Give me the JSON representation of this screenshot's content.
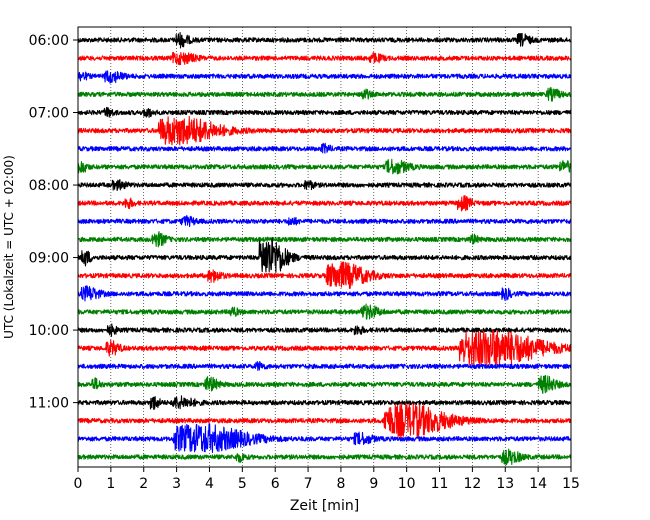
{
  "chart_data": {
    "type": "line",
    "xlabel": "Zeit  [min]",
    "ylabel": "UTC (Lokalzeit = UTC + 02:00)",
    "xlim": [
      0,
      15
    ],
    "x_ticks": [
      "0",
      "1",
      "2",
      "3",
      "4",
      "5",
      "6",
      "7",
      "8",
      "9",
      "10",
      "11",
      "12",
      "13",
      "14",
      "15"
    ],
    "y_ticks": [
      "06:00",
      "07:00",
      "08:00",
      "09:00",
      "10:00",
      "11:00"
    ],
    "grid": "vertical dotted at each minute",
    "trace_interval_min": 15,
    "trace_colors": [
      "#000000",
      "#ff0000",
      "#0000ff",
      "#008000"
    ],
    "traces": [
      {
        "start": "06:00",
        "color": "#000000",
        "events": [
          {
            "t": 3.1,
            "amp": 0.5,
            "dur": 0.3
          },
          {
            "t": 13.5,
            "amp": 0.4,
            "dur": 0.3
          }
        ]
      },
      {
        "start": "06:15",
        "color": "#ff0000",
        "events": [
          {
            "t": 3.1,
            "amp": 0.4,
            "dur": 0.5
          },
          {
            "t": 9.0,
            "amp": 0.3,
            "dur": 0.3
          }
        ]
      },
      {
        "start": "06:30",
        "color": "#0000ff",
        "events": [
          {
            "t": 1.0,
            "amp": 0.4,
            "dur": 0.4
          },
          {
            "t": 0.1,
            "amp": 0.3,
            "dur": 0.2
          }
        ]
      },
      {
        "start": "06:45",
        "color": "#008000",
        "events": [
          {
            "t": 8.7,
            "amp": 0.35,
            "dur": 0.2
          },
          {
            "t": 14.4,
            "amp": 0.4,
            "dur": 0.3
          }
        ]
      },
      {
        "start": "07:00",
        "color": "#000000",
        "events": [
          {
            "t": 0.9,
            "amp": 0.3,
            "dur": 0.2
          },
          {
            "t": 2.1,
            "amp": 0.3,
            "dur": 0.2
          }
        ]
      },
      {
        "start": "07:15",
        "color": "#ff0000",
        "events": [
          {
            "t": 3.1,
            "amp": 1.1,
            "dur": 1.3
          }
        ]
      },
      {
        "start": "07:30",
        "color": "#0000ff",
        "events": [
          {
            "t": 7.5,
            "amp": 0.3,
            "dur": 0.2
          }
        ]
      },
      {
        "start": "07:45",
        "color": "#008000",
        "events": [
          {
            "t": 9.6,
            "amp": 0.5,
            "dur": 0.5
          },
          {
            "t": 14.8,
            "amp": 0.4,
            "dur": 0.3
          },
          {
            "t": 0.1,
            "amp": 0.4,
            "dur": 0.2
          }
        ]
      },
      {
        "start": "08:00",
        "color": "#000000",
        "events": [
          {
            "t": 1.2,
            "amp": 0.3,
            "dur": 0.3
          },
          {
            "t": 7.0,
            "amp": 0.3,
            "dur": 0.2
          }
        ]
      },
      {
        "start": "08:15",
        "color": "#ff0000",
        "events": [
          {
            "t": 1.5,
            "amp": 0.35,
            "dur": 0.2
          },
          {
            "t": 11.7,
            "amp": 0.5,
            "dur": 0.3
          }
        ]
      },
      {
        "start": "08:30",
        "color": "#0000ff",
        "events": [
          {
            "t": 3.3,
            "amp": 0.3,
            "dur": 0.3
          },
          {
            "t": 6.5,
            "amp": 0.25,
            "dur": 0.2
          }
        ]
      },
      {
        "start": "08:45",
        "color": "#008000",
        "events": [
          {
            "t": 2.4,
            "amp": 0.5,
            "dur": 0.3
          },
          {
            "t": 12.0,
            "amp": 0.3,
            "dur": 0.2
          }
        ]
      },
      {
        "start": "09:00",
        "color": "#000000",
        "events": [
          {
            "t": 5.8,
            "amp": 1.6,
            "dur": 0.6
          },
          {
            "t": 0.2,
            "amp": 0.6,
            "dur": 0.2
          }
        ]
      },
      {
        "start": "09:15",
        "color": "#ff0000",
        "events": [
          {
            "t": 8.0,
            "amp": 1.0,
            "dur": 0.9
          },
          {
            "t": 4.1,
            "amp": 0.4,
            "dur": 0.3
          }
        ]
      },
      {
        "start": "09:30",
        "color": "#0000ff",
        "events": [
          {
            "t": 0.3,
            "amp": 0.5,
            "dur": 0.4
          },
          {
            "t": 13.0,
            "amp": 0.4,
            "dur": 0.2
          }
        ]
      },
      {
        "start": "09:45",
        "color": "#008000",
        "events": [
          {
            "t": 8.8,
            "amp": 0.5,
            "dur": 0.4
          },
          {
            "t": 4.7,
            "amp": 0.3,
            "dur": 0.2
          }
        ]
      },
      {
        "start": "10:00",
        "color": "#000000",
        "events": [
          {
            "t": 1.0,
            "amp": 0.35,
            "dur": 0.2
          },
          {
            "t": 8.5,
            "amp": 0.3,
            "dur": 0.2
          }
        ]
      },
      {
        "start": "10:15",
        "color": "#ff0000",
        "events": [
          {
            "t": 12.5,
            "amp": 1.5,
            "dur": 1.8
          },
          {
            "t": 1.0,
            "amp": 0.5,
            "dur": 0.3
          }
        ]
      },
      {
        "start": "10:30",
        "color": "#0000ff",
        "events": [
          {
            "t": 5.5,
            "amp": 0.25,
            "dur": 0.2
          }
        ]
      },
      {
        "start": "10:45",
        "color": "#008000",
        "events": [
          {
            "t": 4.0,
            "amp": 0.5,
            "dur": 0.3
          },
          {
            "t": 14.2,
            "amp": 0.6,
            "dur": 0.4
          },
          {
            "t": 0.5,
            "amp": 0.4,
            "dur": 0.2
          }
        ]
      },
      {
        "start": "11:00",
        "color": "#000000",
        "events": [
          {
            "t": 3.1,
            "amp": 0.4,
            "dur": 0.5
          },
          {
            "t": 2.3,
            "amp": 0.5,
            "dur": 0.2
          }
        ]
      },
      {
        "start": "11:15",
        "color": "#ff0000",
        "events": [
          {
            "t": 10.0,
            "amp": 1.3,
            "dur": 1.4
          }
        ]
      },
      {
        "start": "11:30",
        "color": "#0000ff",
        "events": [
          {
            "t": 3.7,
            "amp": 1.1,
            "dur": 1.6
          },
          {
            "t": 8.6,
            "amp": 0.4,
            "dur": 0.4
          }
        ]
      },
      {
        "start": "11:45",
        "color": "#008000",
        "events": [
          {
            "t": 13.1,
            "amp": 0.5,
            "dur": 0.4
          },
          {
            "t": 4.9,
            "amp": 0.3,
            "dur": 0.2
          }
        ]
      }
    ]
  }
}
